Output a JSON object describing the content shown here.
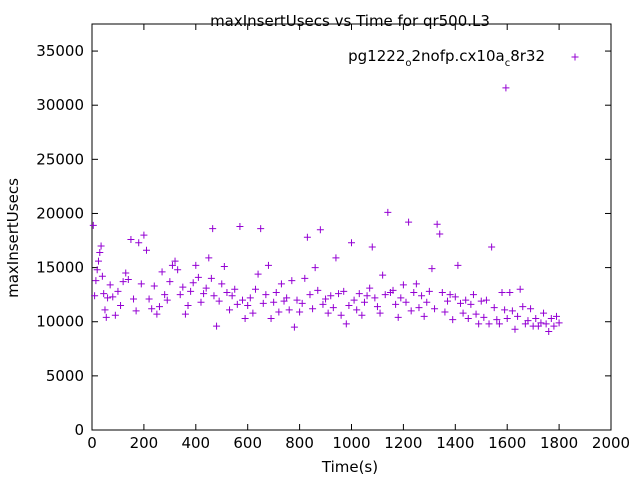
{
  "chart_data": {
    "type": "scatter",
    "title": "maxInsertUsecs vs Time for qr500.L3",
    "xlabel": "Time(s)",
    "ylabel": "maxInsertUsecs",
    "xlim": [
      0,
      2000
    ],
    "ylim": [
      0,
      37500
    ],
    "x_ticks": [
      "0",
      "200",
      "400",
      "600",
      "800",
      "1000",
      "1200",
      "1400",
      "1600",
      "1800",
      "2000"
    ],
    "y_ticks": [
      "0",
      "5000",
      "10000",
      "15000",
      "20000",
      "25000",
      "30000",
      "35000"
    ],
    "legend_position": "top-right",
    "legend": {
      "text_a": "pg1222",
      "sub_1": "o",
      "text_b": "2nofp.cx10a",
      "sub_2": "c",
      "text_c": "8r32"
    },
    "series": [
      {
        "name": "pg1222_o2nofp.cx10a_c8r32",
        "color": "#9400d3",
        "marker": "plus",
        "points": [
          [
            5,
            18900
          ],
          [
            10,
            12400
          ],
          [
            15,
            13800
          ],
          [
            20,
            14800
          ],
          [
            25,
            15600
          ],
          [
            30,
            16400
          ],
          [
            35,
            17000
          ],
          [
            40,
            14200
          ],
          [
            45,
            12600
          ],
          [
            50,
            11100
          ],
          [
            55,
            10400
          ],
          [
            60,
            12200
          ],
          [
            70,
            13400
          ],
          [
            80,
            12300
          ],
          [
            90,
            10600
          ],
          [
            100,
            12800
          ],
          [
            110,
            11500
          ],
          [
            120,
            13700
          ],
          [
            130,
            14500
          ],
          [
            140,
            13900
          ],
          [
            150,
            17600
          ],
          [
            160,
            12100
          ],
          [
            170,
            11000
          ],
          [
            180,
            17300
          ],
          [
            190,
            13500
          ],
          [
            200,
            18000
          ],
          [
            210,
            16600
          ],
          [
            220,
            12100
          ],
          [
            230,
            11200
          ],
          [
            240,
            13300
          ],
          [
            250,
            10700
          ],
          [
            260,
            11400
          ],
          [
            270,
            14600
          ],
          [
            280,
            12500
          ],
          [
            290,
            12000
          ],
          [
            300,
            13700
          ],
          [
            310,
            15200
          ],
          [
            320,
            15600
          ],
          [
            330,
            14800
          ],
          [
            340,
            12500
          ],
          [
            350,
            13200
          ],
          [
            360,
            10700
          ],
          [
            370,
            11500
          ],
          [
            380,
            12800
          ],
          [
            390,
            13600
          ],
          [
            400,
            15200
          ],
          [
            410,
            14100
          ],
          [
            420,
            11800
          ],
          [
            430,
            12600
          ],
          [
            440,
            13100
          ],
          [
            450,
            15900
          ],
          [
            460,
            14000
          ],
          [
            465,
            18600
          ],
          [
            470,
            12400
          ],
          [
            480,
            9600
          ],
          [
            490,
            11900
          ],
          [
            500,
            13500
          ],
          [
            510,
            15100
          ],
          [
            520,
            12700
          ],
          [
            530,
            11100
          ],
          [
            540,
            12400
          ],
          [
            550,
            13000
          ],
          [
            560,
            11600
          ],
          [
            570,
            18800
          ],
          [
            580,
            12000
          ],
          [
            590,
            10300
          ],
          [
            600,
            11500
          ],
          [
            610,
            12200
          ],
          [
            620,
            10800
          ],
          [
            630,
            13000
          ],
          [
            640,
            14400
          ],
          [
            650,
            18600
          ],
          [
            660,
            11700
          ],
          [
            670,
            12500
          ],
          [
            680,
            15200
          ],
          [
            690,
            10300
          ],
          [
            700,
            11800
          ],
          [
            710,
            12700
          ],
          [
            720,
            10900
          ],
          [
            730,
            13500
          ],
          [
            740,
            11900
          ],
          [
            750,
            12200
          ],
          [
            760,
            11100
          ],
          [
            770,
            13800
          ],
          [
            780,
            9500
          ],
          [
            790,
            12000
          ],
          [
            800,
            10900
          ],
          [
            810,
            11700
          ],
          [
            820,
            14000
          ],
          [
            830,
            17800
          ],
          [
            840,
            12500
          ],
          [
            850,
            11200
          ],
          [
            860,
            15000
          ],
          [
            870,
            12900
          ],
          [
            880,
            18500
          ],
          [
            890,
            11600
          ],
          [
            900,
            12100
          ],
          [
            910,
            10800
          ],
          [
            920,
            12400
          ],
          [
            930,
            11300
          ],
          [
            940,
            15900
          ],
          [
            950,
            12600
          ],
          [
            960,
            10600
          ],
          [
            970,
            12800
          ],
          [
            980,
            9800
          ],
          [
            990,
            11500
          ],
          [
            1000,
            17300
          ],
          [
            1010,
            12000
          ],
          [
            1020,
            11100
          ],
          [
            1030,
            12600
          ],
          [
            1040,
            10600
          ],
          [
            1050,
            11800
          ],
          [
            1060,
            12400
          ],
          [
            1070,
            13100
          ],
          [
            1080,
            16900
          ],
          [
            1090,
            12200
          ],
          [
            1100,
            11400
          ],
          [
            1110,
            10800
          ],
          [
            1120,
            14300
          ],
          [
            1130,
            12500
          ],
          [
            1140,
            20100
          ],
          [
            1150,
            12700
          ],
          [
            1160,
            12900
          ],
          [
            1170,
            11600
          ],
          [
            1180,
            10400
          ],
          [
            1190,
            12200
          ],
          [
            1200,
            13400
          ],
          [
            1210,
            11800
          ],
          [
            1220,
            19200
          ],
          [
            1230,
            11000
          ],
          [
            1240,
            12700
          ],
          [
            1250,
            13500
          ],
          [
            1260,
            11300
          ],
          [
            1270,
            12400
          ],
          [
            1280,
            10500
          ],
          [
            1290,
            11800
          ],
          [
            1300,
            12800
          ],
          [
            1310,
            14900
          ],
          [
            1320,
            11200
          ],
          [
            1330,
            19000
          ],
          [
            1340,
            18100
          ],
          [
            1350,
            12700
          ],
          [
            1360,
            10900
          ],
          [
            1370,
            11900
          ],
          [
            1380,
            12500
          ],
          [
            1390,
            10200
          ],
          [
            1400,
            12300
          ],
          [
            1410,
            15200
          ],
          [
            1420,
            11700
          ],
          [
            1430,
            10800
          ],
          [
            1440,
            12000
          ],
          [
            1450,
            10300
          ],
          [
            1460,
            11600
          ],
          [
            1470,
            12500
          ],
          [
            1480,
            10700
          ],
          [
            1490,
            9800
          ],
          [
            1500,
            11900
          ],
          [
            1510,
            10400
          ],
          [
            1520,
            12000
          ],
          [
            1530,
            9800
          ],
          [
            1540,
            16900
          ],
          [
            1550,
            11300
          ],
          [
            1560,
            10200
          ],
          [
            1570,
            9800
          ],
          [
            1580,
            12700
          ],
          [
            1590,
            11100
          ],
          [
            1595,
            31600
          ],
          [
            1600,
            10300
          ],
          [
            1610,
            12700
          ],
          [
            1620,
            11000
          ],
          [
            1630,
            9300
          ],
          [
            1640,
            10500
          ],
          [
            1650,
            13000
          ],
          [
            1660,
            11400
          ],
          [
            1670,
            9800
          ],
          [
            1680,
            10100
          ],
          [
            1690,
            11200
          ],
          [
            1700,
            9600
          ],
          [
            1710,
            10300
          ],
          [
            1720,
            9600
          ],
          [
            1730,
            9900
          ],
          [
            1740,
            10800
          ],
          [
            1750,
            9800
          ],
          [
            1760,
            9100
          ],
          [
            1770,
            10300
          ],
          [
            1780,
            9600
          ],
          [
            1790,
            10500
          ],
          [
            1800,
            9900
          ]
        ]
      }
    ]
  }
}
